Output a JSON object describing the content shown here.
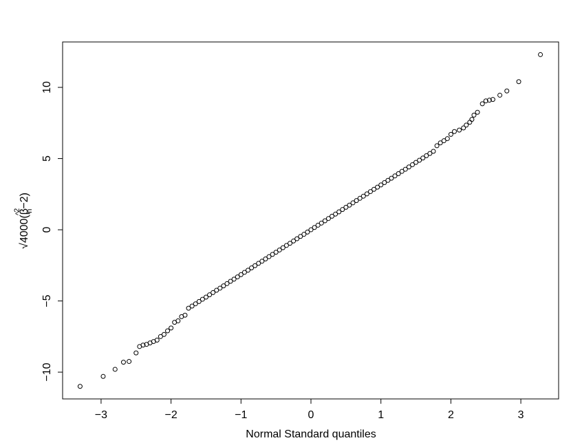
{
  "chart_data": {
    "type": "scatter",
    "x_label": "Normal Standard quantiles",
    "y_label_parts": [
      "√4000",
      "(β",
      "^",
      "2",
      "n",
      "−2)"
    ],
    "xlim": [
      -3.55,
      3.54
    ],
    "ylim": [
      -11.88,
      13.19
    ],
    "xticks": [
      {
        "value": -3,
        "label": "−3"
      },
      {
        "value": -2,
        "label": "−2"
      },
      {
        "value": -1,
        "label": "−1"
      },
      0,
      1,
      2,
      3
    ],
    "yticks": [
      {
        "value": -10,
        "label": "−10"
      },
      {
        "value": -5,
        "label": "−5"
      },
      0,
      5,
      10
    ],
    "color": "#000000",
    "x": [
      -3.3,
      -2.97,
      -2.8,
      -2.68,
      -2.6,
      -2.5,
      -2.45,
      -2.4,
      -2.35,
      -2.3,
      -2.25,
      -2.2,
      -2.15,
      -2.1,
      -2.05,
      -2.0,
      -1.95,
      -1.9,
      -1.85,
      -1.8,
      -1.75,
      -1.7,
      -1.65,
      -1.6,
      -1.55,
      -1.5,
      -1.45,
      -1.4,
      -1.35,
      -1.3,
      -1.25,
      -1.2,
      -1.15,
      -1.1,
      -1.05,
      -1.0,
      -0.95,
      -0.9,
      -0.85,
      -0.8,
      -0.75,
      -0.7,
      -0.65,
      -0.6,
      -0.55,
      -0.5,
      -0.45,
      -0.4,
      -0.35,
      -0.3,
      -0.25,
      -0.2,
      -0.15,
      -0.1,
      -0.05,
      0,
      0.05,
      0.1,
      0.15,
      0.2,
      0.25,
      0.3,
      0.35,
      0.4,
      0.45,
      0.5,
      0.55,
      0.6,
      0.65,
      0.7,
      0.75,
      0.8,
      0.85,
      0.9,
      0.95,
      1.0,
      1.05,
      1.1,
      1.15,
      1.2,
      1.25,
      1.3,
      1.35,
      1.4,
      1.45,
      1.5,
      1.55,
      1.6,
      1.65,
      1.7,
      1.75,
      1.8,
      1.85,
      1.9,
      1.95,
      2.0,
      2.05,
      2.12,
      2.18,
      2.22,
      2.27,
      2.3,
      2.33,
      2.38,
      2.45,
      2.5,
      2.55,
      2.6,
      2.7,
      2.8,
      2.97,
      3.28
    ],
    "y": [
      -11.0,
      -10.3,
      -9.8,
      -9.3,
      -9.25,
      -8.65,
      -8.2,
      -8.1,
      -8.05,
      -7.95,
      -7.85,
      -7.75,
      -7.5,
      -7.35,
      -7.1,
      -6.9,
      -6.5,
      -6.4,
      -6.1,
      -6.0,
      -5.51,
      -5.36,
      -5.2,
      -5.04,
      -4.88,
      -4.73,
      -4.57,
      -4.41,
      -4.25,
      -4.1,
      -3.94,
      -3.78,
      -3.62,
      -3.47,
      -3.31,
      -3.15,
      -2.99,
      -2.84,
      -2.68,
      -2.52,
      -2.36,
      -2.21,
      -2.05,
      -1.89,
      -1.73,
      -1.58,
      -1.42,
      -1.26,
      -1.1,
      -0.95,
      -0.79,
      -0.63,
      -0.47,
      -0.32,
      -0.16,
      0,
      0.16,
      0.32,
      0.47,
      0.63,
      0.79,
      0.95,
      1.1,
      1.26,
      1.42,
      1.58,
      1.73,
      1.89,
      2.05,
      2.21,
      2.36,
      2.52,
      2.68,
      2.84,
      2.99,
      3.15,
      3.31,
      3.47,
      3.62,
      3.78,
      3.94,
      4.1,
      4.25,
      4.41,
      4.57,
      4.73,
      4.88,
      5.04,
      5.2,
      5.36,
      5.51,
      5.9,
      6.1,
      6.25,
      6.4,
      6.7,
      6.9,
      7.0,
      7.15,
      7.35,
      7.55,
      7.75,
      8.05,
      8.25,
      8.85,
      9.05,
      9.1,
      9.15,
      9.45,
      9.75,
      10.4,
      12.3
    ]
  }
}
